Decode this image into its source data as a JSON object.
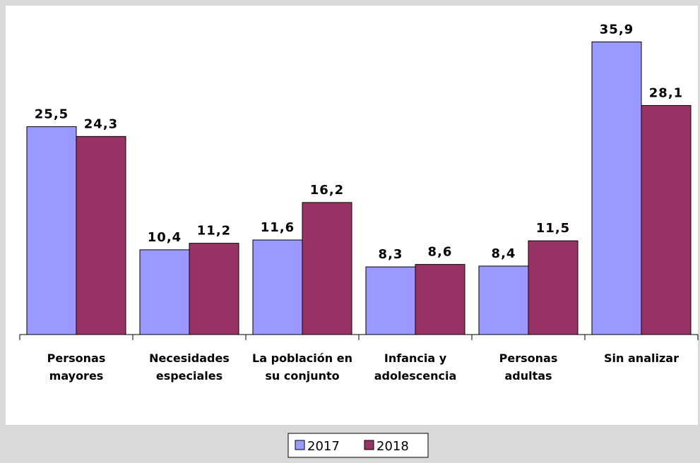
{
  "chart_data": {
    "type": "bar",
    "categories": [
      "Personas mayores",
      "Necesidades especiales",
      "La población en su conjunto",
      "Infancia y adolescencia",
      "Personas adultas",
      "Sin analizar"
    ],
    "series": [
      {
        "name": "2017",
        "color": "#9999ff",
        "values": [
          25.5,
          10.4,
          11.6,
          8.3,
          8.4,
          35.9
        ],
        "value_labels": [
          "25,5",
          "10,4",
          "11,6",
          "8,3",
          "8,4",
          "35,9"
        ]
      },
      {
        "name": "2018",
        "color": "#993366",
        "values": [
          24.3,
          11.2,
          16.2,
          8.6,
          11.5,
          28.1
        ],
        "value_labels": [
          "24,3",
          "11,2",
          "16,2",
          "8,6",
          "11,5",
          "28,1"
        ]
      }
    ],
    "ylim": [
      0,
      40
    ]
  }
}
